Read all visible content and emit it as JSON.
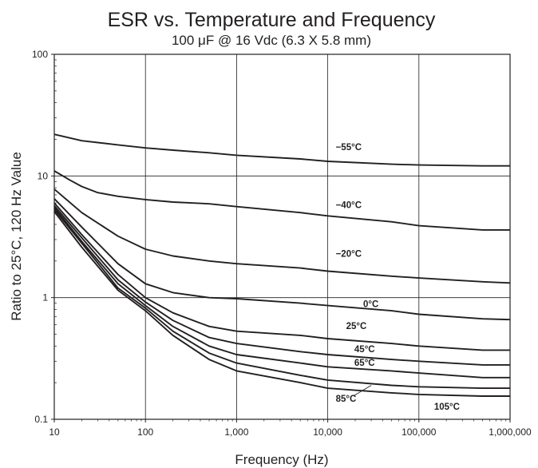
{
  "chart_data": {
    "type": "line",
    "title": "ESR vs. Temperature and Frequency",
    "subtitle": "100 μF @ 16 Vdc (6.3 X 5.8  mm)",
    "xlabel": "Frequency (Hz)",
    "ylabel": "Ratio to 25°C, 120 Hz Value",
    "x_scale": "log",
    "y_scale": "log",
    "xlim": [
      10,
      1000000
    ],
    "ylim": [
      0.1,
      100
    ],
    "x_ticks": [
      10,
      100,
      1000,
      10000,
      100000,
      1000000
    ],
    "x_tick_labels": [
      "10",
      "100",
      "1,000",
      "10,000",
      "100,000",
      "1,000,000"
    ],
    "y_ticks": [
      0.1,
      1,
      10,
      100
    ],
    "y_tick_labels": [
      "0.1",
      "1",
      "10",
      "100"
    ],
    "grid": true,
    "legend": "none",
    "line_color": "#231f20",
    "series": [
      {
        "name": "−55°C",
        "x": [
          10,
          20,
          50,
          100,
          200,
          500,
          1000,
          5000,
          10000,
          50000,
          100000,
          500000,
          1000000
        ],
        "y": [
          22,
          19.5,
          18,
          17,
          16.3,
          15.5,
          14.8,
          13.8,
          13.2,
          12.5,
          12.3,
          12.1,
          12.1
        ]
      },
      {
        "name": "−40°C",
        "x": [
          10,
          15,
          20,
          30,
          50,
          100,
          200,
          500,
          1000,
          5000,
          10000,
          50000,
          100000,
          500000,
          1000000
        ],
        "y": [
          11,
          9.2,
          8.2,
          7.3,
          6.8,
          6.4,
          6.1,
          5.9,
          5.6,
          5.0,
          4.7,
          4.2,
          3.9,
          3.6,
          3.6
        ]
      },
      {
        "name": "−20°C",
        "x": [
          10,
          20,
          50,
          100,
          200,
          500,
          1000,
          5000,
          10000,
          50000,
          100000,
          500000,
          1000000
        ],
        "y": [
          7.8,
          5.0,
          3.2,
          2.5,
          2.2,
          2.0,
          1.9,
          1.75,
          1.65,
          1.5,
          1.45,
          1.35,
          1.32
        ]
      },
      {
        "name": "0°C",
        "x": [
          10,
          20,
          50,
          100,
          200,
          500,
          1000,
          5000,
          10000,
          50000,
          100000,
          500000,
          1000000
        ],
        "y": [
          6.5,
          3.8,
          1.9,
          1.3,
          1.1,
          1.0,
          0.98,
          0.9,
          0.86,
          0.78,
          0.73,
          0.67,
          0.66
        ]
      },
      {
        "name": "25°C",
        "x": [
          10,
          20,
          50,
          100,
          200,
          500,
          1000,
          5000,
          10000,
          50000,
          100000,
          500000,
          1000000
        ],
        "y": [
          6.0,
          3.3,
          1.55,
          1.0,
          0.75,
          0.58,
          0.53,
          0.49,
          0.46,
          0.42,
          0.4,
          0.37,
          0.37
        ]
      },
      {
        "name": "45°C",
        "x": [
          10,
          20,
          50,
          100,
          200,
          500,
          1000,
          5000,
          10000,
          50000,
          100000,
          500000,
          1000000
        ],
        "y": [
          5.7,
          3.1,
          1.4,
          0.92,
          0.65,
          0.47,
          0.42,
          0.36,
          0.34,
          0.31,
          0.3,
          0.28,
          0.28
        ]
      },
      {
        "name": "65°C",
        "x": [
          10,
          20,
          50,
          100,
          200,
          500,
          1000,
          5000,
          10000,
          50000,
          100000,
          500000,
          1000000
        ],
        "y": [
          5.5,
          2.9,
          1.3,
          0.86,
          0.58,
          0.4,
          0.34,
          0.29,
          0.27,
          0.25,
          0.24,
          0.22,
          0.22
        ]
      },
      {
        "name": "85°C",
        "x": [
          10,
          20,
          50,
          100,
          200,
          500,
          1000,
          5000,
          10000,
          50000,
          100000,
          500000,
          1000000
        ],
        "y": [
          5.3,
          2.8,
          1.2,
          0.82,
          0.53,
          0.35,
          0.29,
          0.23,
          0.21,
          0.19,
          0.185,
          0.18,
          0.18
        ]
      },
      {
        "name": "105°C",
        "x": [
          10,
          20,
          50,
          100,
          200,
          500,
          1000,
          5000,
          10000,
          50000,
          100000,
          500000,
          1000000
        ],
        "y": [
          5.1,
          2.6,
          1.15,
          0.78,
          0.49,
          0.31,
          0.25,
          0.2,
          0.18,
          0.165,
          0.16,
          0.155,
          0.155
        ]
      }
    ]
  }
}
